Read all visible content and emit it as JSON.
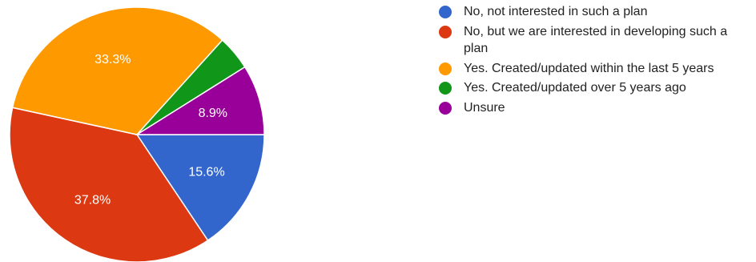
{
  "chart_data": {
    "type": "pie",
    "title": "",
    "slices": [
      {
        "label": "No, not interested in such a plan",
        "value": 15.6,
        "display": "15.6%",
        "color": "#3366cc"
      },
      {
        "label": "No, but we are interested in developing such a plan",
        "value": 37.8,
        "display": "37.8%",
        "color": "#dc3912"
      },
      {
        "label": "Yes. Created/updated within the last 5 years",
        "value": 33.3,
        "display": "33.3%",
        "color": "#ff9900"
      },
      {
        "label": "Yes. Created/updated over 5 years ago",
        "value": 4.4,
        "display": "",
        "color": "#109618"
      },
      {
        "label": "Unsure",
        "value": 8.9,
        "display": "8.9%",
        "color": "#990099"
      }
    ],
    "start_angle_deg": 90,
    "direction": "clockwise",
    "legend_position": "right"
  }
}
